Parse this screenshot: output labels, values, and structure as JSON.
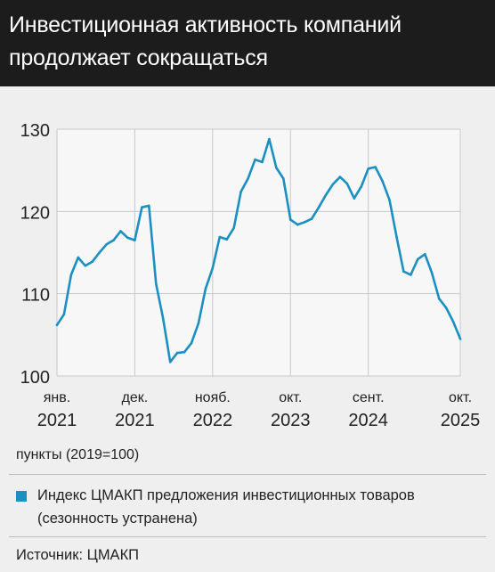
{
  "header": {
    "title_line1": "Инвестиционная активность компаний",
    "title_line2": "продолжает сокращаться"
  },
  "unit_label": "пункты (2019=100)",
  "legend_label_line1": "Индекс ЦМАКП предложения инвестиционных товаров",
  "legend_label_line2": "(сезонность устранена)",
  "source": "Источник: ЦМАКП",
  "colors": {
    "line": "#1b8fc1",
    "header_bg": "#1c1c1c",
    "background": "#efefef",
    "grid": "#c8c8c8"
  },
  "chart_data": {
    "type": "line",
    "ylim": [
      100,
      130
    ],
    "y_ticks": [
      100,
      110,
      120,
      130
    ],
    "grid": true,
    "x_ticks": [
      {
        "label_top": "янв.",
        "label_bottom": "2021",
        "index": 0
      },
      {
        "label_top": "дек.",
        "label_bottom": "2021",
        "index": 11
      },
      {
        "label_top": "нояб.",
        "label_bottom": "2022",
        "index": 22
      },
      {
        "label_top": "окт.",
        "label_bottom": "2023",
        "index": 33
      },
      {
        "label_top": "сент.",
        "label_bottom": "2024",
        "index": 44
      },
      {
        "label_top": "окт.",
        "label_bottom": "2025",
        "index": 57
      }
    ],
    "series": [
      {
        "name": "Индекс ЦМАКП предложения инвестиционных товаров (сезонность устранена)",
        "start": "2021-01",
        "frequency": "monthly",
        "values": [
          106.2,
          107.5,
          112.3,
          114.4,
          113.4,
          113.9,
          115.0,
          116.0,
          116.5,
          117.6,
          116.8,
          116.5,
          120.5,
          120.7,
          111.2,
          107.0,
          101.7,
          102.8,
          102.9,
          104.0,
          106.4,
          110.6,
          113.1,
          116.9,
          116.6,
          118.0,
          122.4,
          124.0,
          126.3,
          126.0,
          128.8,
          125.3,
          124.0,
          119.0,
          118.4,
          118.7,
          119.1,
          120.5,
          122.0,
          123.3,
          124.2,
          123.4,
          121.6,
          123.0,
          125.2,
          125.4,
          123.7,
          121.4,
          116.9,
          112.7,
          112.3,
          114.2,
          114.8,
          112.5,
          109.4,
          108.3,
          106.6,
          104.5
        ]
      }
    ]
  }
}
